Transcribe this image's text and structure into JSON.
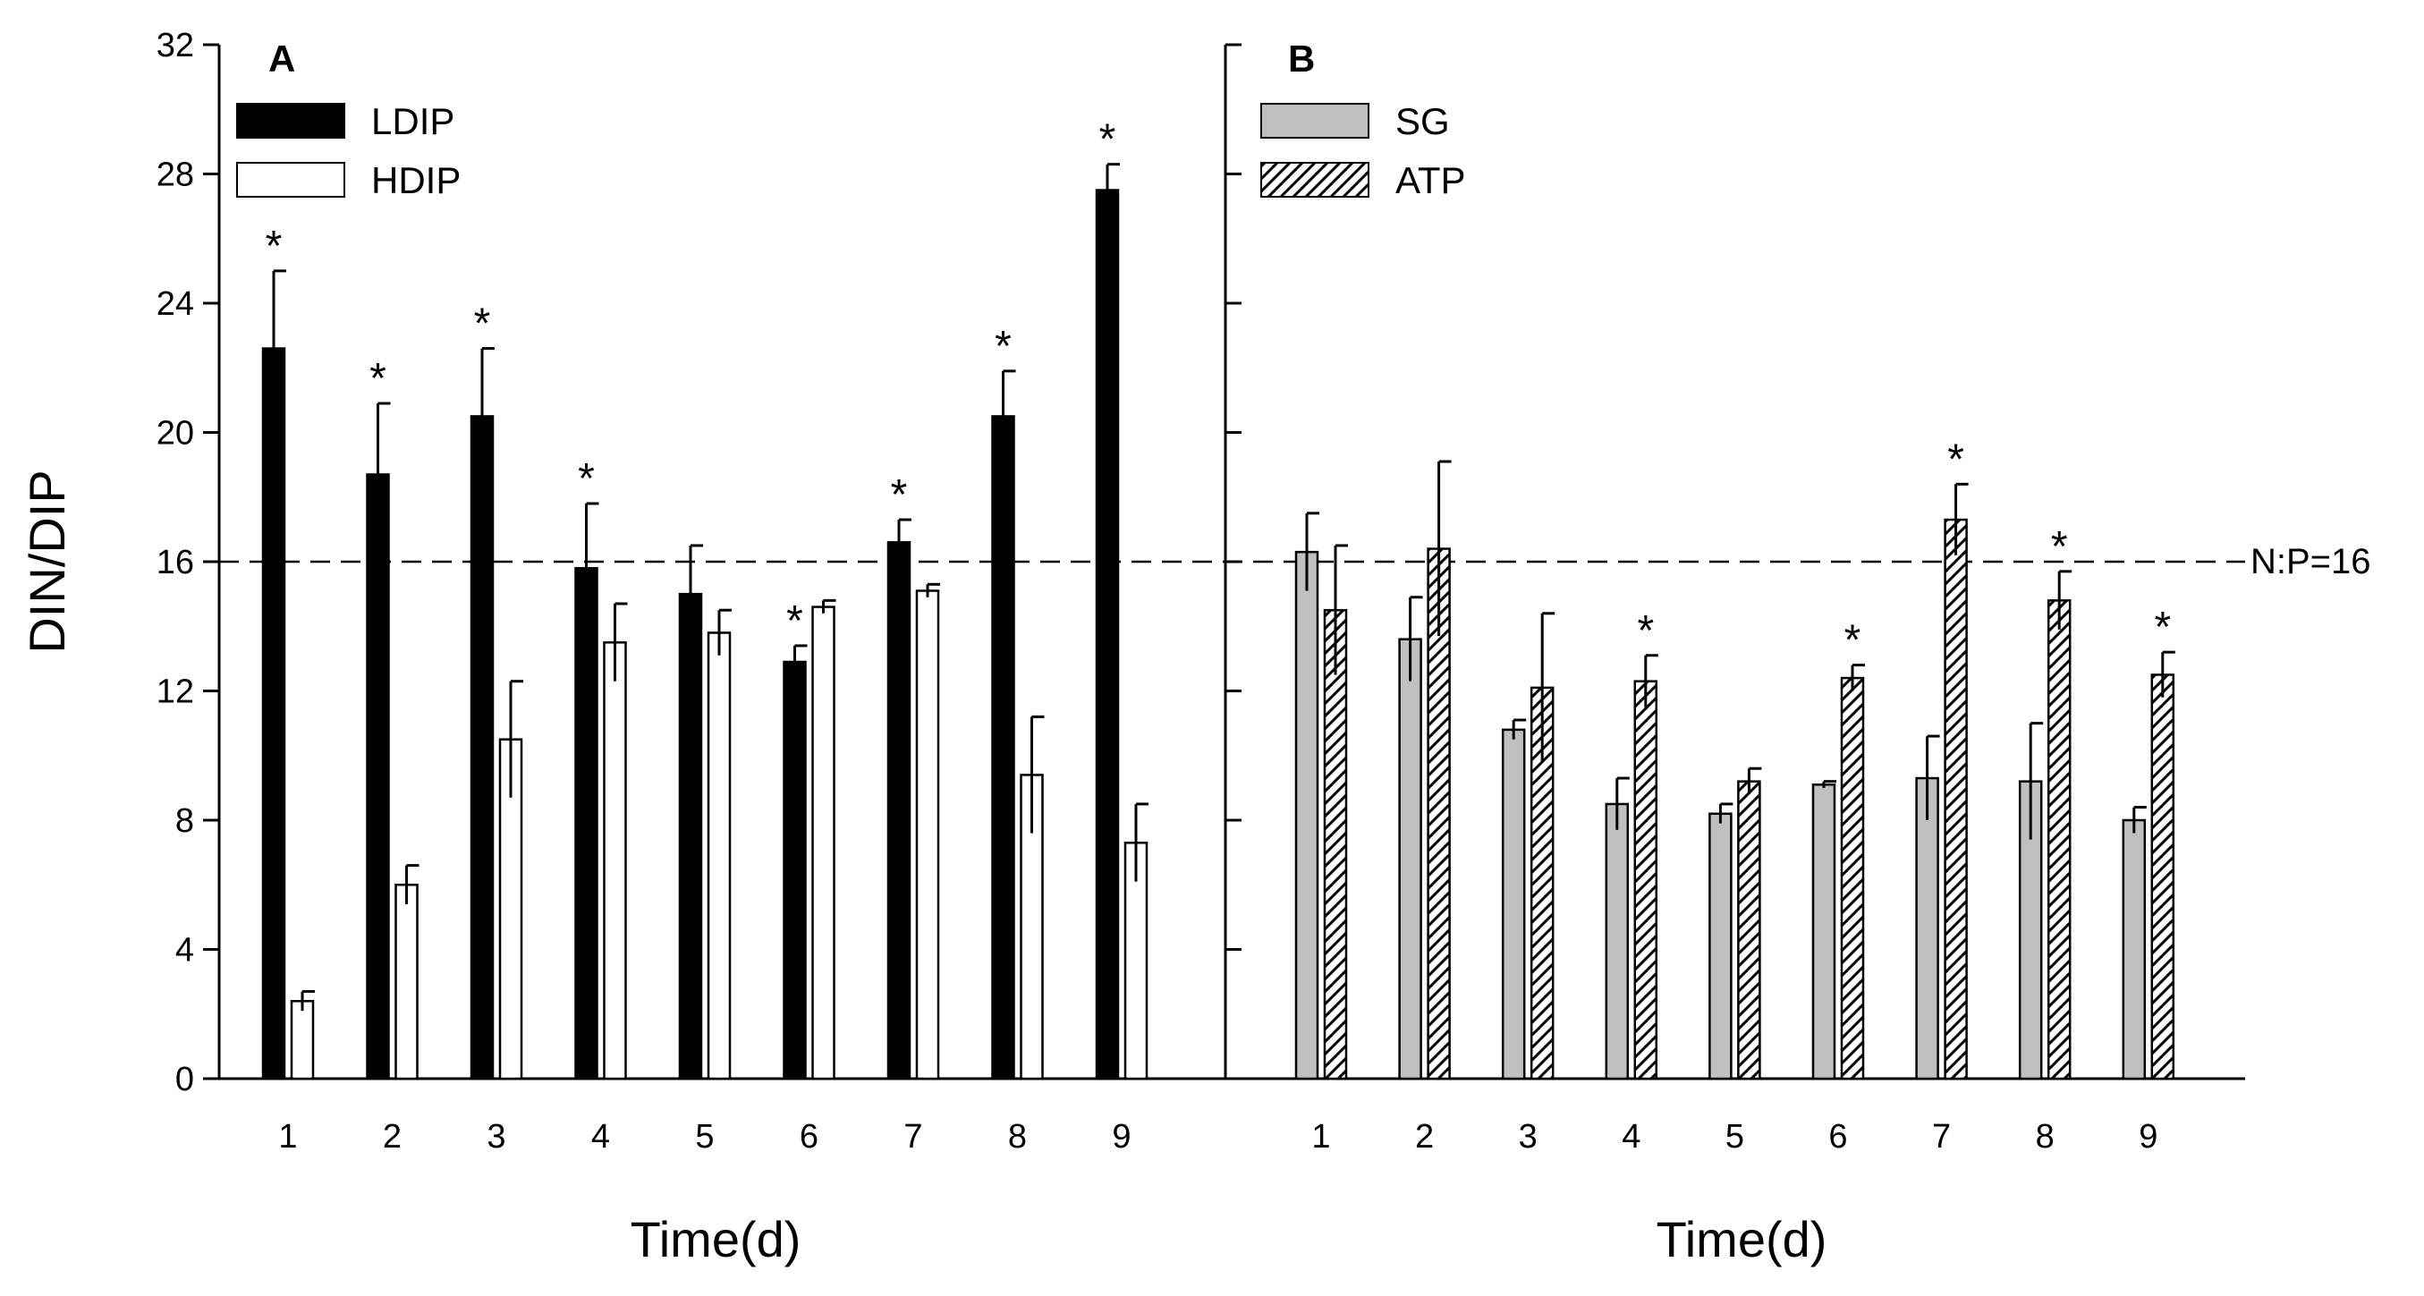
{
  "chart_data": [
    {
      "type": "bar",
      "panel_label": "A",
      "categories": [
        "1",
        "2",
        "3",
        "4",
        "5",
        "6",
        "7",
        "8",
        "9"
      ],
      "series": [
        {
          "name": "LDIP",
          "fill": "#000000",
          "values": [
            22.6,
            18.7,
            20.5,
            15.8,
            15.0,
            12.9,
            16.6,
            20.5,
            27.5
          ],
          "errors": [
            2.4,
            2.2,
            2.1,
            2.0,
            1.5,
            0.5,
            0.7,
            1.4,
            0.8
          ],
          "significant": [
            true,
            true,
            true,
            true,
            false,
            true,
            true,
            true,
            true
          ]
        },
        {
          "name": "HDIP",
          "fill": "#ffffff",
          "values": [
            2.4,
            6.0,
            10.5,
            13.5,
            13.8,
            14.6,
            15.1,
            9.4,
            7.3
          ],
          "errors": [
            0.3,
            0.6,
            1.8,
            1.2,
            0.7,
            0.2,
            0.2,
            1.8,
            1.2
          ],
          "significant": [
            false,
            false,
            false,
            false,
            false,
            false,
            false,
            false,
            false
          ]
        }
      ],
      "title": "",
      "xlabel": "Time(d)",
      "ylabel": "DIN/DIP",
      "ylim": [
        0,
        32
      ],
      "yticks": [
        "0",
        "4",
        "8",
        "12",
        "16",
        "20",
        "24",
        "28",
        "32"
      ],
      "reference_line": {
        "value": 16,
        "style": "dashed"
      },
      "legend_position": "top-left",
      "grid": false
    },
    {
      "type": "bar",
      "panel_label": "B",
      "categories": [
        "1",
        "2",
        "3",
        "4",
        "5",
        "6",
        "7",
        "8",
        "9"
      ],
      "series": [
        {
          "name": "SG",
          "fill": "#c0c0c0",
          "values": [
            16.3,
            13.6,
            10.8,
            8.5,
            8.2,
            9.1,
            9.3,
            9.2,
            8.0
          ],
          "errors": [
            1.2,
            1.3,
            0.3,
            0.8,
            0.3,
            0.1,
            1.3,
            1.8,
            0.4
          ],
          "significant": [
            false,
            false,
            false,
            false,
            false,
            false,
            false,
            false,
            false
          ]
        },
        {
          "name": "ATP",
          "fill": "hatched",
          "values": [
            14.5,
            16.4,
            12.1,
            12.3,
            9.2,
            12.4,
            17.3,
            14.8,
            12.5
          ],
          "errors": [
            2.0,
            2.7,
            2.3,
            0.8,
            0.4,
            0.4,
            1.1,
            0.9,
            0.7
          ],
          "significant": [
            false,
            false,
            false,
            true,
            false,
            true,
            true,
            true,
            true
          ]
        }
      ],
      "title": "",
      "xlabel": "Time(d)",
      "ylabel": "",
      "ylim": [
        0,
        32
      ],
      "reference_line": {
        "value": 16,
        "style": "dashed",
        "label": "N:P=16"
      },
      "legend_position": "top-left",
      "grid": false
    }
  ],
  "significance_marker": "*"
}
